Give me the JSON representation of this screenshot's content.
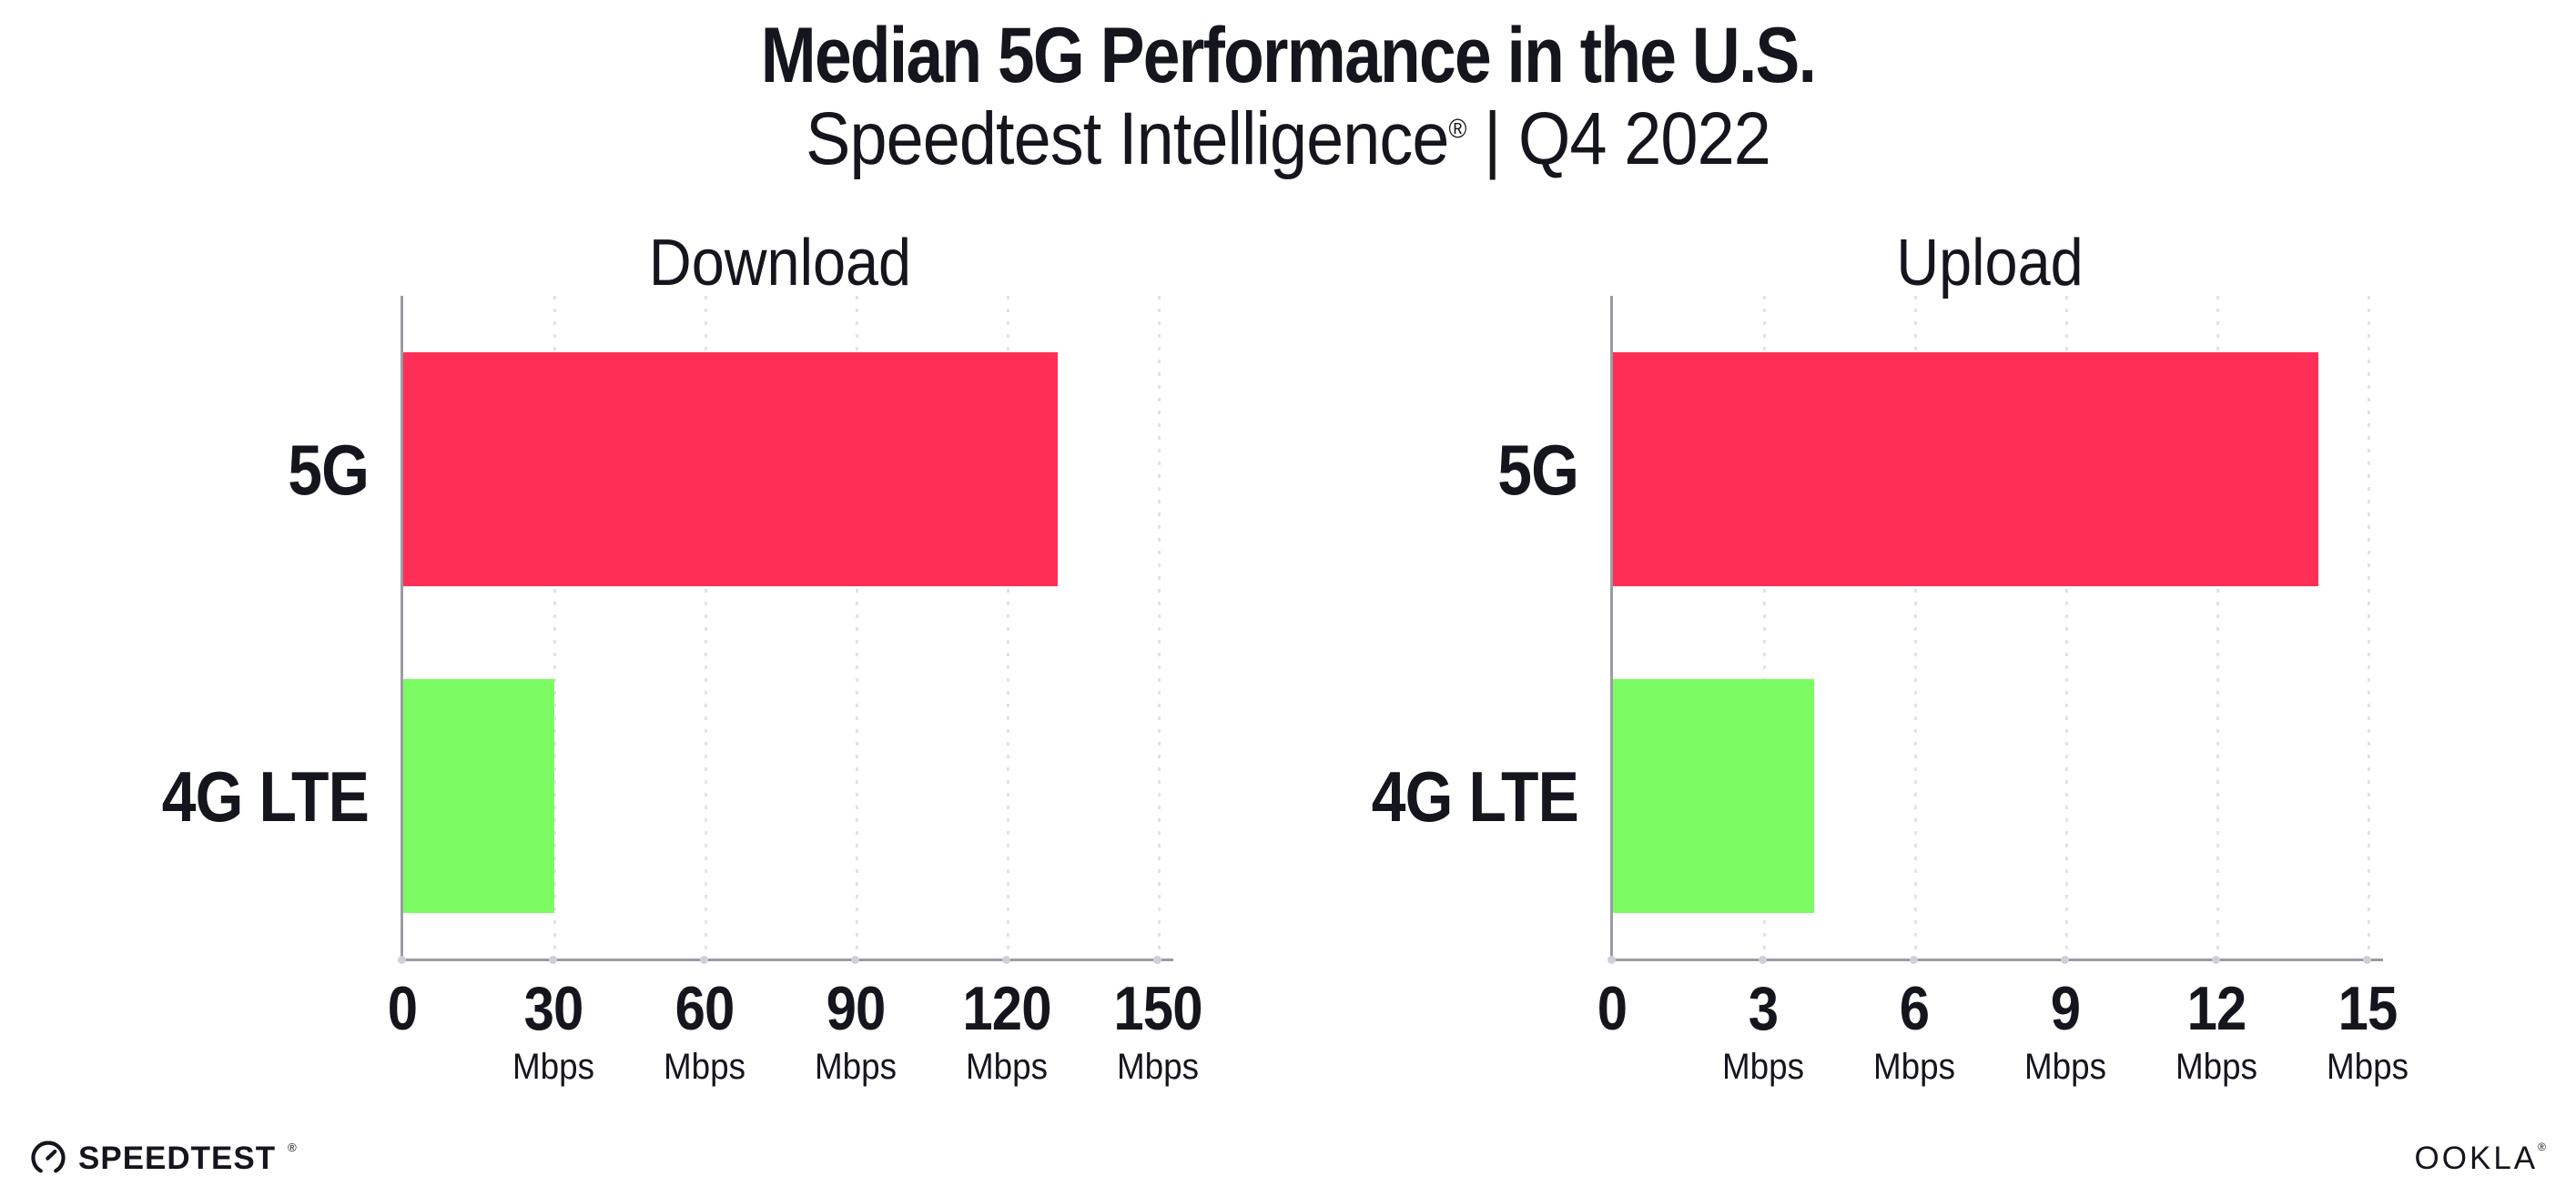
{
  "header": {
    "title": "Median 5G Performance in the U.S.",
    "subtitle_brand": "Speedtest Intelligence",
    "subtitle_reg": "®",
    "subtitle_rest": " | Q4 2022"
  },
  "footer": {
    "speedtest_label": "SPEEDTEST",
    "speedtest_reg": "®",
    "ookla_label": "OOKLA",
    "ookla_reg": "®"
  },
  "colors": {
    "bar_5g": "#ff2e56",
    "bar_4g": "#7dfb63",
    "axis": "#9b9ba3",
    "gridline": "#e2e2ea",
    "text": "#15151e"
  },
  "chart_data": [
    {
      "type": "bar",
      "orientation": "horizontal",
      "title": "Download",
      "categories": [
        "5G",
        "4G LTE"
      ],
      "values": [
        130,
        30
      ],
      "unit": "Mbps",
      "xlim": [
        0,
        150
      ],
      "xticks": [
        0,
        30,
        60,
        90,
        120,
        150
      ],
      "bar_colors": [
        "#ff2e56",
        "#7dfb63"
      ],
      "grid": "dotted-vertical",
      "legend": "none"
    },
    {
      "type": "bar",
      "orientation": "horizontal",
      "title": "Upload",
      "categories": [
        "5G",
        "4G LTE"
      ],
      "values": [
        14,
        4
      ],
      "unit": "Mbps",
      "xlim": [
        0,
        15
      ],
      "xticks": [
        0,
        3,
        6,
        9,
        12,
        15
      ],
      "bar_colors": [
        "#ff2e56",
        "#7dfb63"
      ],
      "grid": "dotted-vertical",
      "legend": "none"
    }
  ]
}
